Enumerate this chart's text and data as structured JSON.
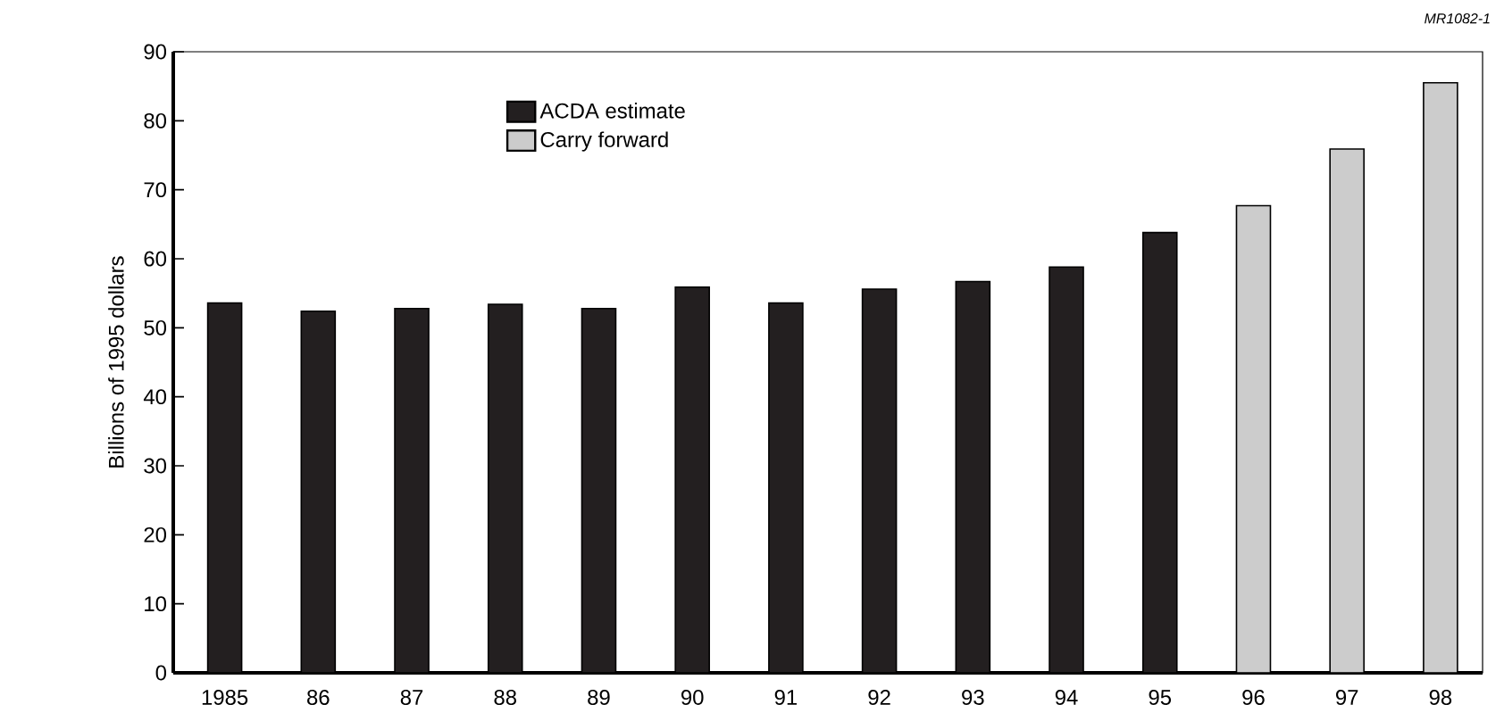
{
  "chart_data": {
    "type": "bar",
    "ylabel": "Billions of 1995 dollars",
    "categories": [
      "1985",
      "86",
      "87",
      "88",
      "89",
      "90",
      "91",
      "92",
      "93",
      "94",
      "95",
      "96",
      "97",
      "98"
    ],
    "series": [
      {
        "name": "ACDA estimate",
        "color": "#231f20",
        "values": [
          53.6,
          52.4,
          52.8,
          53.4,
          52.8,
          55.9,
          53.6,
          55.6,
          56.7,
          58.8,
          63.8,
          null,
          null,
          null
        ]
      },
      {
        "name": "Carry forward",
        "color": "#cccccc",
        "values": [
          null,
          null,
          null,
          null,
          null,
          null,
          null,
          null,
          null,
          null,
          null,
          67.7,
          75.9,
          85.5
        ]
      }
    ],
    "ylim": [
      0,
      90
    ],
    "yticks": [
      0,
      10,
      20,
      30,
      40,
      50,
      60,
      70,
      80,
      90
    ],
    "legend": "top",
    "grid": false,
    "annotations": [
      "MR1082-1"
    ]
  }
}
